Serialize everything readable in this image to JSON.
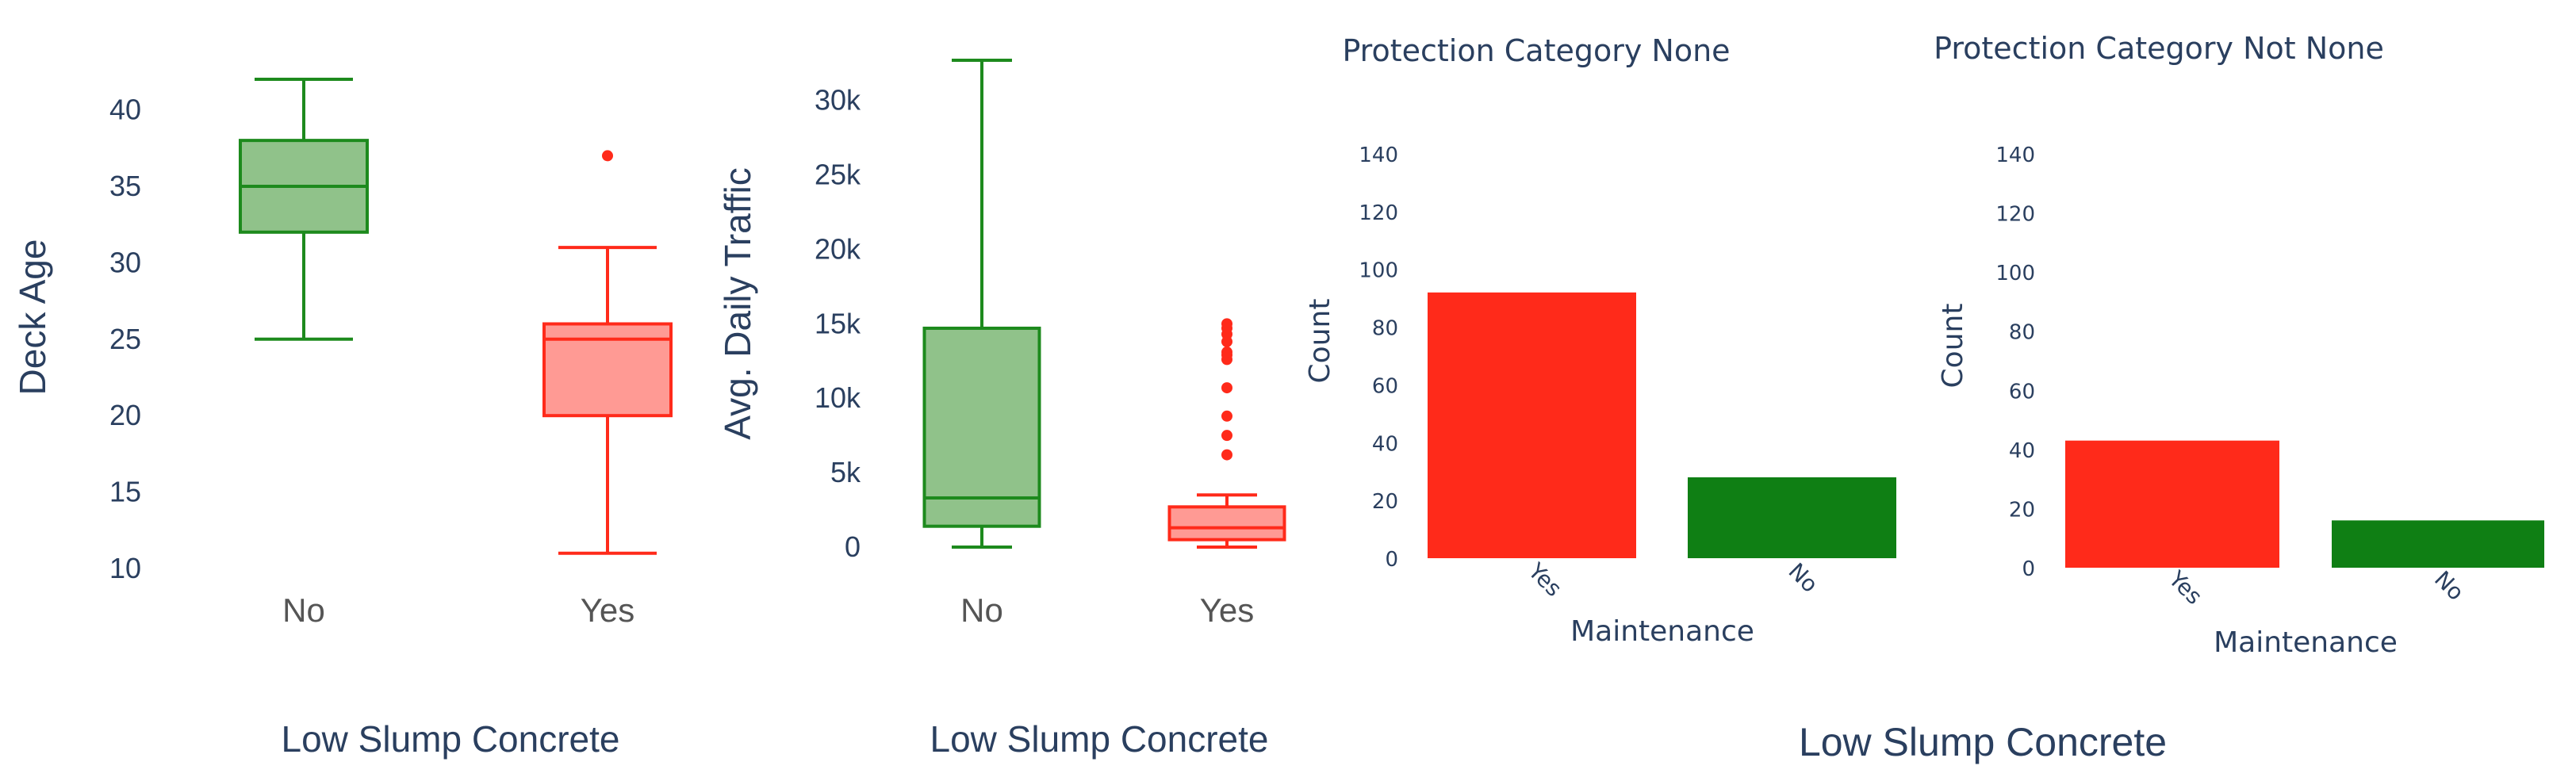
{
  "colors": {
    "no_box_fill": "#90c28a",
    "no_box_line": "#1d8a1d",
    "yes_box_fill": "#ff9a94",
    "yes_box_line": "#ff2a1a",
    "bar_yes": "#ff2a1a",
    "bar_no": "#0f7f14",
    "title_text": "#2a3f5f",
    "big_tick_text": "#555555"
  },
  "group_labels": {
    "panel1_xtitle": "Low Slump Concrete",
    "panel2_xtitle": "Low Slump Concrete",
    "right_xtitle": "Low Slump Concrete"
  },
  "chart_data": [
    {
      "type": "box",
      "categories": [
        "No",
        "Yes"
      ],
      "ylabel": "Deck Age",
      "xlabel": "Low Slump Concrete",
      "ylim": [
        10,
        42
      ],
      "yticks": [
        10,
        15,
        20,
        25,
        30,
        35,
        40
      ],
      "ytick_labels": [
        "10",
        "15",
        "20",
        "25",
        "30",
        "35",
        "40"
      ],
      "boxes": [
        {
          "category": "No",
          "min": 25,
          "q1": 32,
          "median": 35,
          "q3": 38,
          "max": 42,
          "outliers": []
        },
        {
          "category": "Yes",
          "min": 11,
          "q1": 20,
          "median": 25,
          "q3": 26,
          "max": 31,
          "outliers": [
            37
          ]
        }
      ]
    },
    {
      "type": "box",
      "categories": [
        "No",
        "Yes"
      ],
      "ylabel": "Avg. Daily Traffic",
      "xlabel": "Low Slump Concrete",
      "ylim": [
        0,
        32700
      ],
      "yticks": [
        0,
        5000,
        10000,
        15000,
        20000,
        25000,
        30000
      ],
      "ytick_labels": [
        "0",
        "5k",
        "10k",
        "15k",
        "20k",
        "25k",
        "30k"
      ],
      "boxes": [
        {
          "category": "No",
          "min": 0,
          "q1": 1400,
          "median": 3300,
          "q3": 14700,
          "max": 32700,
          "outliers": []
        },
        {
          "category": "Yes",
          "min": 0,
          "q1": 500,
          "median": 1300,
          "q3": 2700,
          "max": 3500,
          "outliers": [
            6200,
            7500,
            8800,
            10700,
            12600,
            12900,
            13100,
            13800,
            14300,
            14700,
            15000
          ]
        }
      ]
    },
    {
      "type": "bar",
      "title": "Protection Category None",
      "categories": [
        "Yes",
        "No"
      ],
      "values": [
        92,
        28
      ],
      "xlabel": "Maintenance",
      "ylabel": "Count",
      "ylim": [
        0,
        140
      ],
      "yticks": [
        0,
        20,
        40,
        60,
        80,
        100,
        120,
        140
      ]
    },
    {
      "type": "bar",
      "title": "Protection Category Not None",
      "categories": [
        "Yes",
        "No"
      ],
      "values": [
        43,
        16
      ],
      "xlabel": "Maintenance",
      "ylabel": "Count",
      "ylim": [
        0,
        140
      ],
      "yticks": [
        0,
        20,
        40,
        60,
        80,
        100,
        120,
        140
      ]
    }
  ]
}
